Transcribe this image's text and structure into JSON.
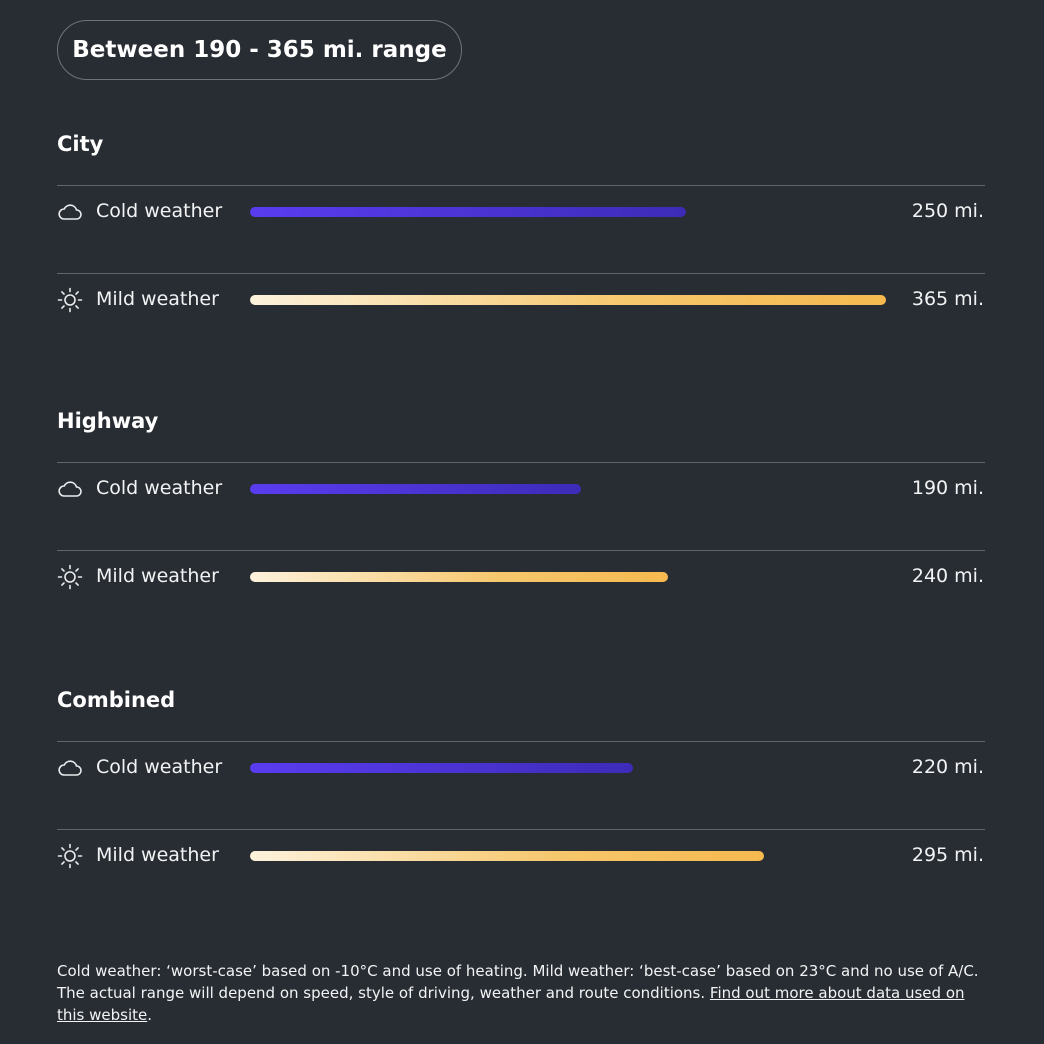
{
  "header": {
    "range_label": "Between 190 - 365 mi. range"
  },
  "chart_data": {
    "type": "bar",
    "orientation": "horizontal",
    "xlim": [
      0,
      365
    ],
    "groups": [
      {
        "title": "City",
        "rows": [
          {
            "icon": "cloud-icon",
            "label": "Cold weather",
            "kind": "cold",
            "value": 250,
            "value_label": "250 mi."
          },
          {
            "icon": "sun-icon",
            "label": "Mild weather",
            "kind": "mild",
            "value": 365,
            "value_label": "365 mi."
          }
        ]
      },
      {
        "title": "Highway",
        "rows": [
          {
            "icon": "cloud-icon",
            "label": "Cold weather",
            "kind": "cold",
            "value": 190,
            "value_label": "190 mi."
          },
          {
            "icon": "sun-icon",
            "label": "Mild weather",
            "kind": "mild",
            "value": 240,
            "value_label": "240 mi."
          }
        ]
      },
      {
        "title": "Combined",
        "rows": [
          {
            "icon": "cloud-icon",
            "label": "Cold weather",
            "kind": "cold",
            "value": 220,
            "value_label": "220 mi."
          },
          {
            "icon": "sun-icon",
            "label": "Mild weather",
            "kind": "mild",
            "value": 295,
            "value_label": "295 mi."
          }
        ]
      }
    ],
    "colors": {
      "cold_start": "#5a3cf0",
      "cold_end": "#3d2bb8",
      "mild_start": "#fdf2dc",
      "mild_end": "#f5b94f"
    }
  },
  "footnote": {
    "text_line1": "Cold weather: ‘worst-case’ based on -10°C and use of heating. Mild weather: ‘best-case’ based on 23°C and no use of A/C.",
    "text_line2": "The actual range will depend on speed, style of driving, weather and route conditions.",
    "link_text": "Find out more about data used on this website",
    "suffix": "."
  }
}
